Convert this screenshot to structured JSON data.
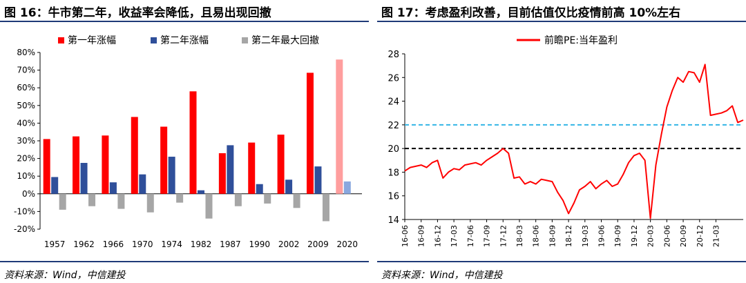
{
  "charts": {
    "left": {
      "title": "图 16：牛市第二年，收益率会降低，且易出现回撤",
      "source": "资料来源：Wind，中信建投"
    },
    "right": {
      "title": "图 17：考虑盈利改善，目前估值仅比疫情前高 10%左右",
      "source": "资料来源：Wind，中信建投"
    }
  },
  "chart_data": [
    {
      "type": "bar",
      "title": "图 16：牛市第二年，收益率会降低，且易出现回撤",
      "categories": [
        "1957",
        "1962",
        "1966",
        "1970",
        "1974",
        "1982",
        "1987",
        "1990",
        "2002",
        "2009",
        "2020"
      ],
      "series": [
        {
          "name": "第一年涨幅",
          "color": "#ff0000",
          "values": [
            0.31,
            0.325,
            0.33,
            0.435,
            0.38,
            0.58,
            0.23,
            0.29,
            0.335,
            0.685,
            0.76
          ],
          "highlight_last_color": "#ff9e9e"
        },
        {
          "name": "第二年涨幅",
          "color": "#2f4f9a",
          "values": [
            0.095,
            0.175,
            0.065,
            0.11,
            0.21,
            0.02,
            0.275,
            0.055,
            0.08,
            0.155,
            0.07
          ],
          "highlight_last_color": "#8aa8df"
        },
        {
          "name": "第二年最大回撤",
          "color": "#a6a6a6",
          "values": [
            -0.09,
            -0.07,
            -0.085,
            -0.105,
            -0.05,
            -0.14,
            -0.07,
            -0.055,
            -0.08,
            -0.155,
            null
          ]
        }
      ],
      "yticks": [
        "-20%",
        "-10%",
        "0%",
        "10%",
        "20%",
        "30%",
        "40%",
        "50%",
        "60%",
        "70%",
        "80%"
      ],
      "ylim": [
        -0.2,
        0.8
      ],
      "legend": "top",
      "grid": false
    },
    {
      "type": "line",
      "title": "图 17：考虑盈利改善，目前估值仅比疫情前高 10%左右",
      "series": [
        {
          "name": "前瞻PE:当年盈利",
          "color": "#ff0000",
          "points": [
            [
              "2016-06",
              18.1
            ],
            [
              "2016-07",
              18.4
            ],
            [
              "2016-08",
              18.5
            ],
            [
              "2016-09",
              18.6
            ],
            [
              "2016-10",
              18.4
            ],
            [
              "2016-11",
              18.8
            ],
            [
              "2016-12",
              19.0
            ],
            [
              "2017-01",
              17.5
            ],
            [
              "2017-02",
              18.0
            ],
            [
              "2017-03",
              18.3
            ],
            [
              "2017-04",
              18.2
            ],
            [
              "2017-05",
              18.6
            ],
            [
              "2017-06",
              18.7
            ],
            [
              "2017-07",
              18.8
            ],
            [
              "2017-08",
              18.6
            ],
            [
              "2017-09",
              19.0
            ],
            [
              "2017-10",
              19.3
            ],
            [
              "2017-11",
              19.6
            ],
            [
              "2017-12",
              20.0
            ],
            [
              "2018-01",
              19.6
            ],
            [
              "2018-02",
              17.5
            ],
            [
              "2018-03",
              17.6
            ],
            [
              "2018-04",
              17.0
            ],
            [
              "2018-05",
              17.2
            ],
            [
              "2018-06",
              17.0
            ],
            [
              "2018-07",
              17.4
            ],
            [
              "2018-08",
              17.3
            ],
            [
              "2018-09",
              17.2
            ],
            [
              "2018-10",
              16.3
            ],
            [
              "2018-11",
              15.6
            ],
            [
              "2018-12",
              14.5
            ],
            [
              "2019-01",
              15.4
            ],
            [
              "2019-02",
              16.5
            ],
            [
              "2019-03",
              16.8
            ],
            [
              "2019-04",
              17.2
            ],
            [
              "2019-05",
              16.6
            ],
            [
              "2019-06",
              17.0
            ],
            [
              "2019-07",
              17.3
            ],
            [
              "2019-08",
              16.8
            ],
            [
              "2019-09",
              17.0
            ],
            [
              "2019-10",
              17.8
            ],
            [
              "2019-11",
              18.8
            ],
            [
              "2019-12",
              19.4
            ],
            [
              "2020-01",
              19.6
            ],
            [
              "2020-02",
              19.0
            ],
            [
              "2020-03",
              14.1
            ],
            [
              "2020-04",
              18.6
            ],
            [
              "2020-05",
              21.2
            ],
            [
              "2020-06",
              23.5
            ],
            [
              "2020-07",
              24.9
            ],
            [
              "2020-08",
              26.0
            ],
            [
              "2020-09",
              25.6
            ],
            [
              "2020-10",
              26.5
            ],
            [
              "2020-11",
              26.4
            ],
            [
              "2020-12",
              25.6
            ],
            [
              "2021-01",
              27.1
            ],
            [
              "2021-02",
              22.8
            ],
            [
              "2021-03",
              22.9
            ],
            [
              "2021-04",
              23.0
            ],
            [
              "2021-05",
              23.2
            ],
            [
              "2021-06",
              23.6
            ],
            [
              "2021-07",
              22.2
            ],
            [
              "2021-08",
              22.4
            ]
          ]
        }
      ],
      "reference_lines": [
        {
          "y": 22,
          "color": "#33b5e5",
          "style": "dashed"
        },
        {
          "y": 20,
          "color": "#000000",
          "style": "dashed"
        }
      ],
      "xticks": [
        "16-06",
        "16-09",
        "16-12",
        "17-03",
        "17-06",
        "17-09",
        "17-12",
        "18-03",
        "18-06",
        "18-09",
        "18-12",
        "19-03",
        "19-06",
        "19-09",
        "19-12",
        "20-03",
        "20-06",
        "20-09",
        "20-12",
        "21-03"
      ],
      "yticks": [
        "14",
        "16",
        "18",
        "20",
        "22",
        "24",
        "26",
        "28"
      ],
      "ylim": [
        14,
        28
      ],
      "legend": "top",
      "grid": false
    }
  ]
}
